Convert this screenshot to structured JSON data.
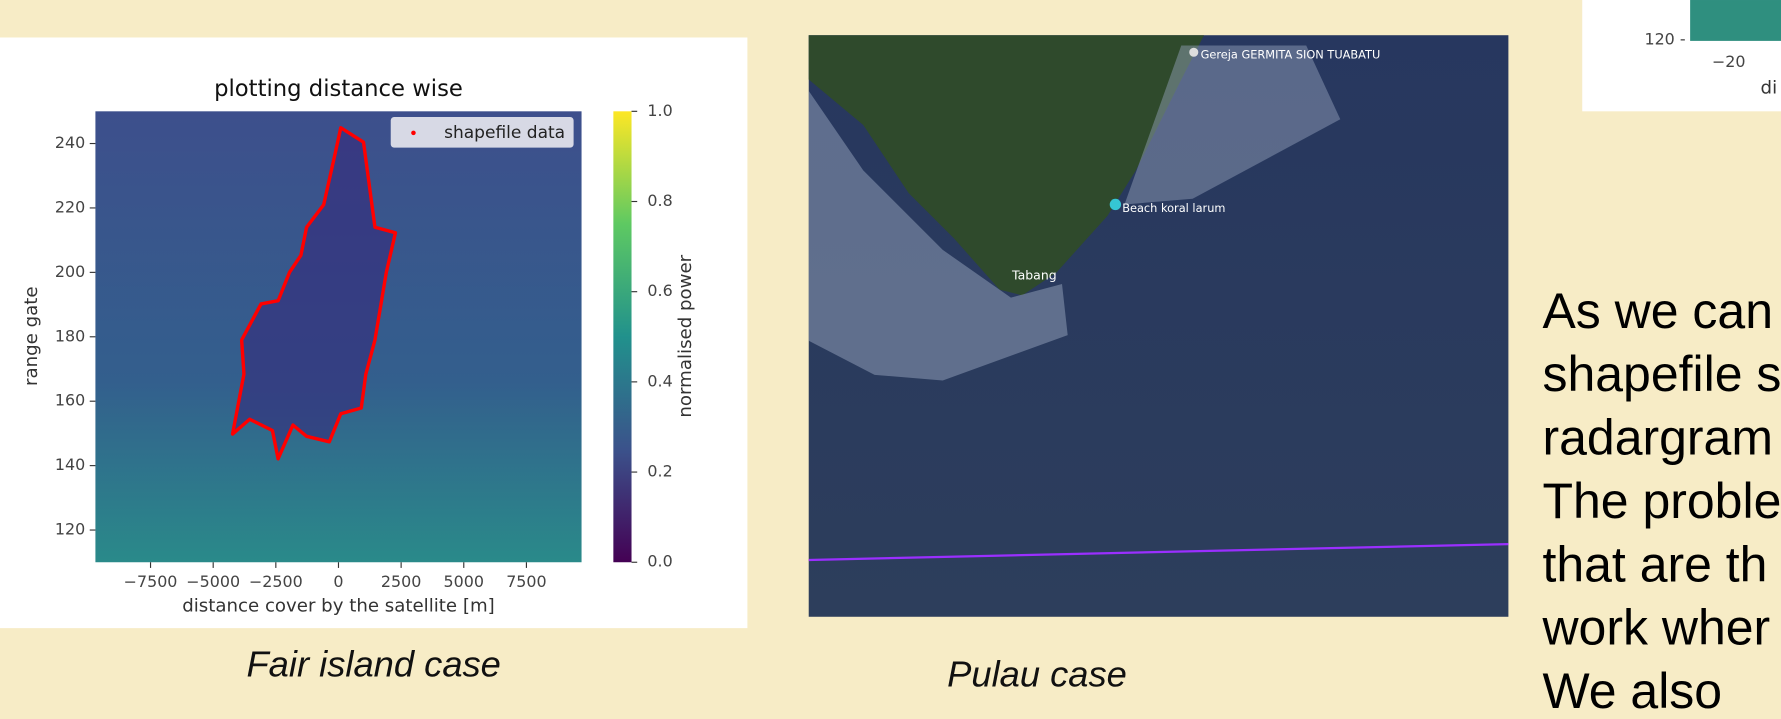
{
  "chart_data": {
    "type": "scatter",
    "title": "plotting distance wise",
    "x_label": "distance cover by the satellite [m]",
    "y_label": "range gate",
    "xlim": [
      -9700,
      9700
    ],
    "ylim": [
      110,
      250
    ],
    "xticks": [
      {
        "value": -7500,
        "label": "−7500"
      },
      {
        "value": -5000,
        "label": "−5000"
      },
      {
        "value": -2500,
        "label": "−2500"
      },
      0,
      2500,
      5000,
      7500
    ],
    "yticks": [
      120,
      140,
      160,
      180,
      200,
      220,
      240
    ],
    "series": [
      {
        "name": "shapefile data",
        "color": "#ff0000",
        "x": [
          91,
          1000,
          1455,
          2273,
          1909,
          1455,
          1091,
          909,
          91,
          -364,
          -1273,
          -1818,
          -2409,
          -2636,
          -3545,
          -4227,
          -3773,
          -3864,
          -3091,
          -2409,
          -1955,
          -1500,
          -1273,
          -591,
          -136
        ],
        "y": [
          244.9,
          240.4,
          214,
          212.3,
          200,
          179,
          168.4,
          157.9,
          156.1,
          147.4,
          149.1,
          152.6,
          142.1,
          150.9,
          154.4,
          149.8,
          168.4,
          179,
          190.2,
          191.2,
          200,
          205.3,
          214,
          221,
          236.8
        ]
      }
    ],
    "colorbar_label": "normalised power",
    "clim": [
      0,
      1
    ],
    "cticks": [
      {
        "value": 0,
        "label": "0.0"
      },
      0.2,
      0.4,
      0.6,
      0.8,
      {
        "value": 1,
        "label": "1.0"
      }
    ]
  },
  "slide": {
    "caption_left": "Fair island case",
    "caption_middle": "Pulau case",
    "map_labels": [
      "Gereja GERMITA SION TUABATU",
      "Beach koral larum",
      "Tabang"
    ],
    "partial_chart": {
      "y_tick": "120 -",
      "x_tick": "−20",
      "x_label": "di"
    },
    "body_lines": [
      "As we can",
      "shapefile s",
      "radargram",
      "The proble",
      "that are th",
      "work wher",
      "We also"
    ]
  }
}
